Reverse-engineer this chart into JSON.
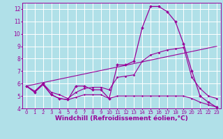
{
  "background_color": "#b0e0e8",
  "line_color": "#990099",
  "grid_color": "#ffffff",
  "xlabel": "Windchill (Refroidissement éolien,°C)",
  "xlabel_fontsize": 6.5,
  "xtick_fontsize": 5.0,
  "ytick_fontsize": 5.5,
  "xlim": [
    -0.5,
    23.5
  ],
  "ylim": [
    4,
    12.5
  ],
  "yticks": [
    4,
    5,
    6,
    7,
    8,
    9,
    10,
    11,
    12
  ],
  "xticks": [
    0,
    1,
    2,
    3,
    4,
    5,
    6,
    7,
    8,
    9,
    10,
    11,
    12,
    13,
    14,
    15,
    16,
    17,
    18,
    19,
    20,
    21,
    22,
    23
  ],
  "series1_x": [
    0,
    1,
    2,
    3,
    4,
    5,
    6,
    7,
    8,
    9,
    10,
    11,
    12,
    13,
    14,
    15,
    16,
    17,
    18,
    19,
    20,
    21,
    22,
    23
  ],
  "series1_y": [
    5.8,
    5.3,
    6.0,
    5.1,
    4.8,
    4.7,
    5.8,
    5.8,
    5.5,
    5.5,
    4.8,
    7.5,
    7.5,
    7.8,
    10.5,
    12.2,
    12.2,
    11.8,
    11.0,
    9.2,
    7.0,
    5.0,
    4.5,
    4.1
  ],
  "series2_x": [
    0,
    1,
    2,
    3,
    4,
    5,
    6,
    7,
    8,
    9,
    10,
    11,
    12,
    13,
    14,
    15,
    16,
    17,
    18,
    19,
    20,
    21,
    22,
    23
  ],
  "series2_y": [
    5.8,
    5.4,
    6.0,
    5.3,
    5.1,
    4.8,
    5.3,
    5.6,
    5.7,
    5.7,
    5.5,
    6.5,
    6.6,
    6.7,
    7.8,
    8.3,
    8.5,
    8.7,
    8.8,
    8.9,
    6.5,
    5.6,
    5.0,
    4.8
  ],
  "series3_x": [
    0,
    23
  ],
  "series3_y": [
    5.8,
    9.0
  ],
  "series4_x": [
    0,
    1,
    2,
    3,
    4,
    5,
    6,
    7,
    8,
    9,
    10,
    11,
    12,
    13,
    14,
    15,
    16,
    17,
    18,
    19,
    20,
    21,
    22,
    23
  ],
  "series4_y": [
    5.8,
    5.3,
    5.9,
    5.1,
    4.8,
    4.7,
    4.9,
    5.1,
    5.1,
    5.1,
    4.8,
    5.0,
    5.0,
    5.0,
    5.0,
    5.0,
    5.0,
    5.0,
    5.0,
    5.0,
    4.8,
    4.5,
    4.3,
    4.1
  ]
}
